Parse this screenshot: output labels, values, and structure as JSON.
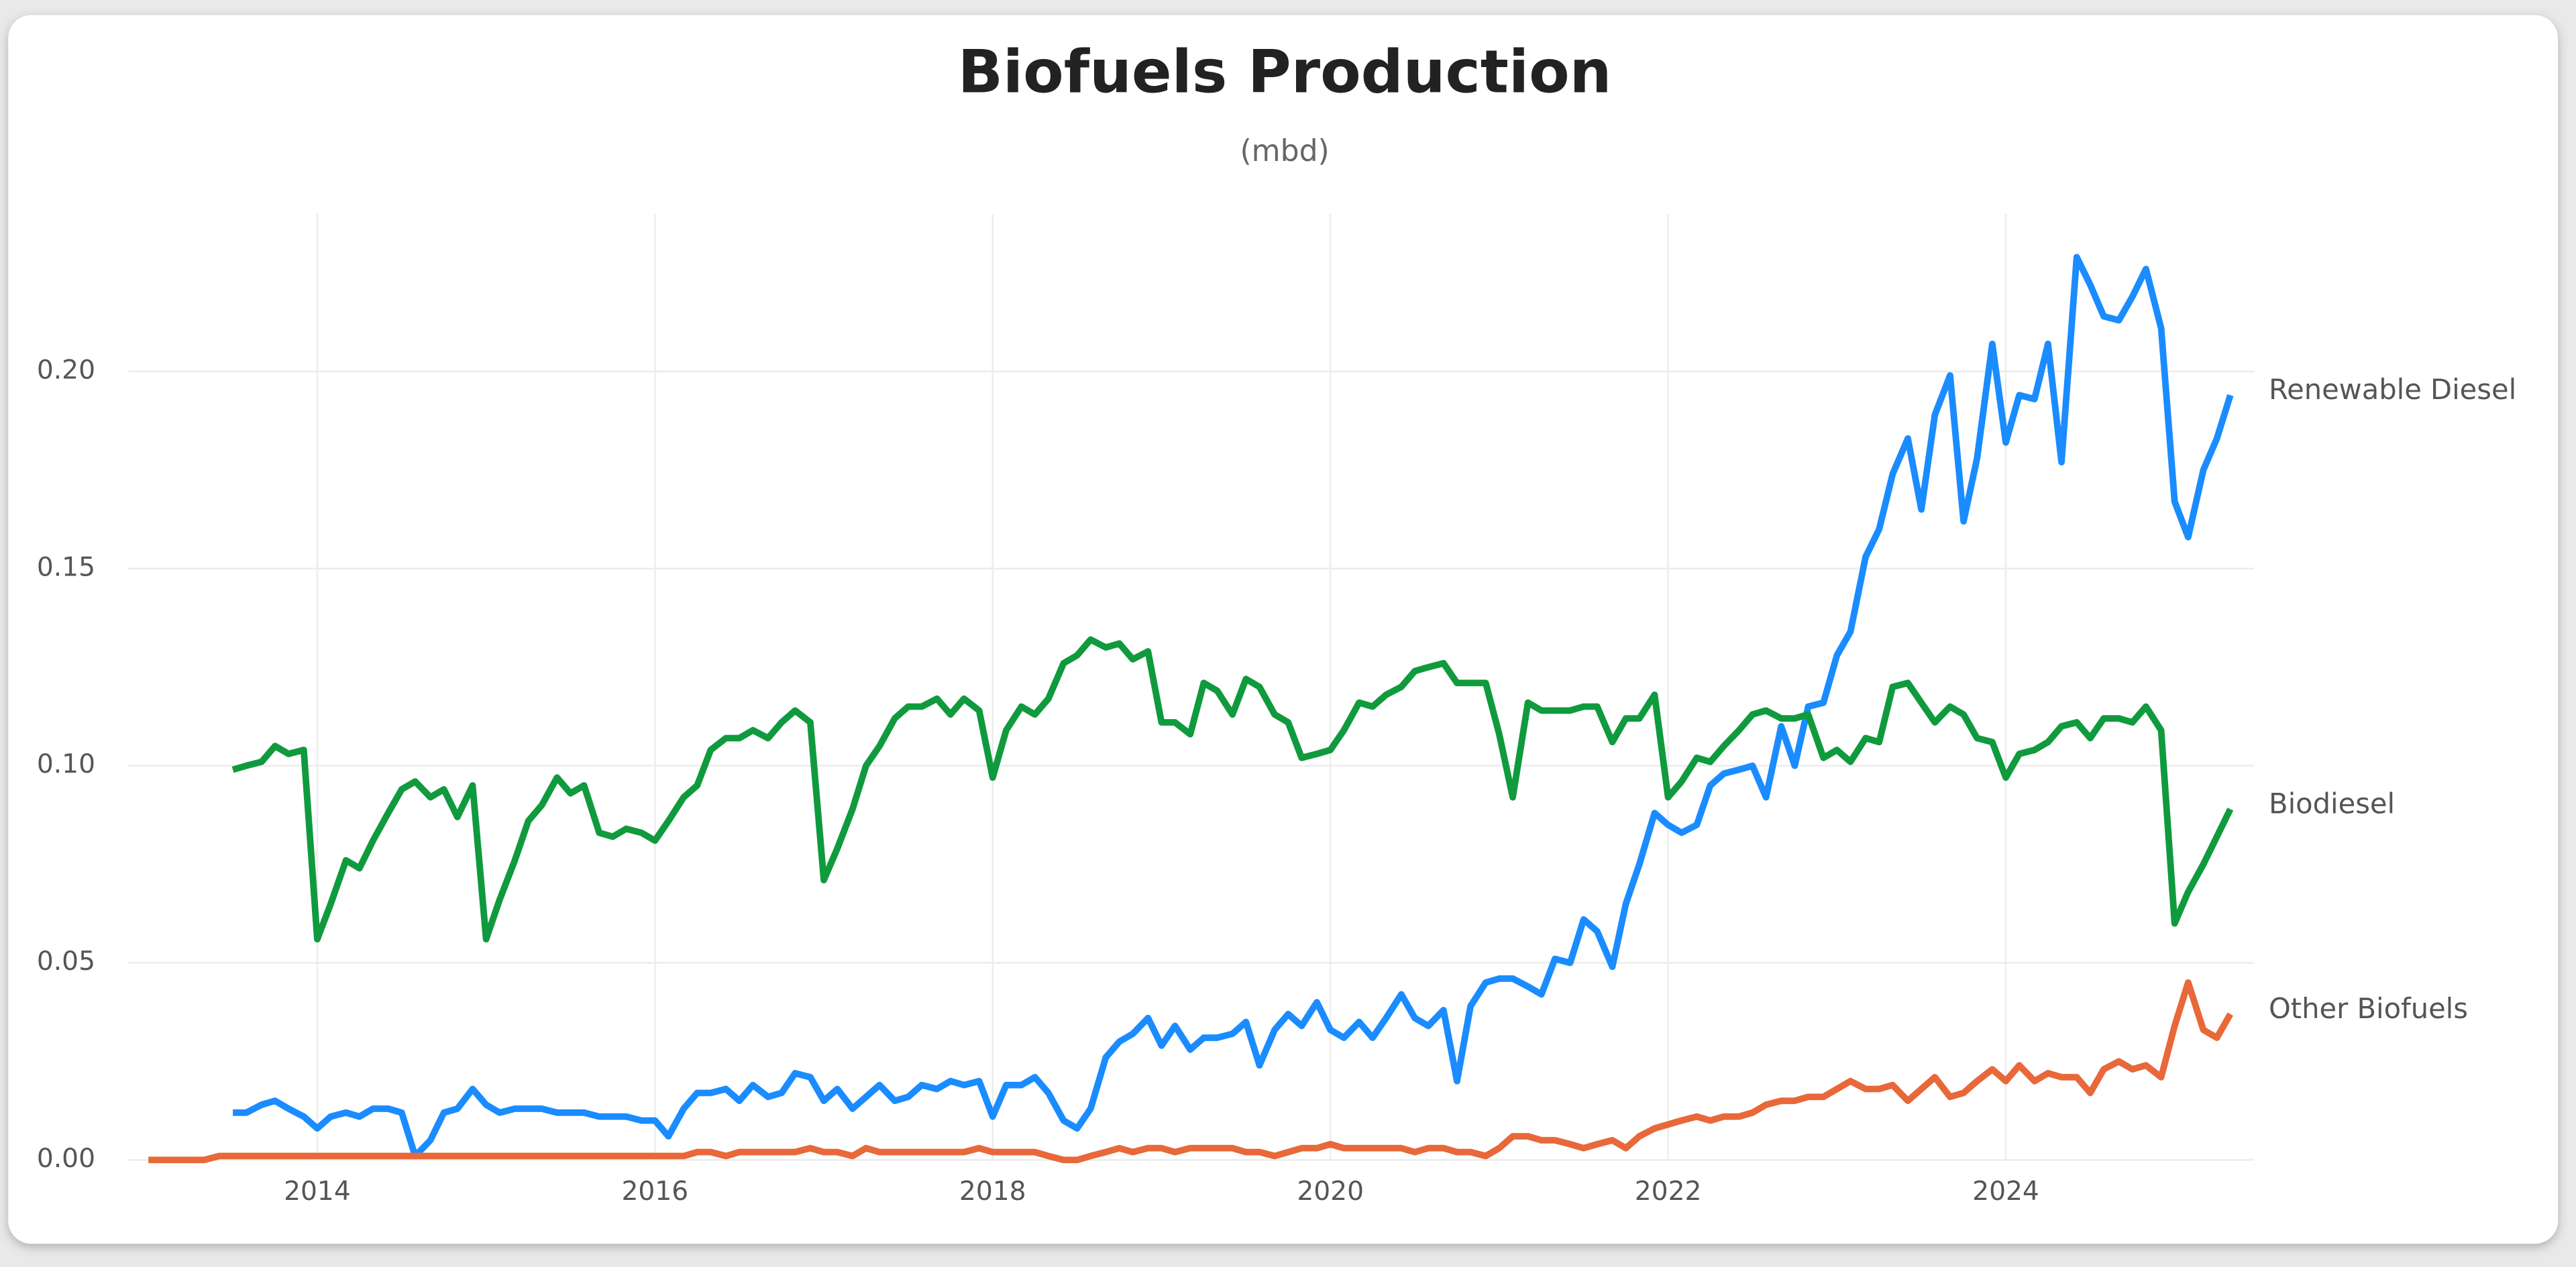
{
  "chart_data": {
    "type": "line",
    "title": "Biofuels Production",
    "subtitle": "(mbd)",
    "x": [
      2013.0,
      2013.08,
      2013.17,
      2013.25,
      2013.33,
      2013.42,
      2013.5,
      2013.58,
      2013.67,
      2013.75,
      2013.83,
      2013.92,
      2014.0,
      2014.08,
      2014.17,
      2014.25,
      2014.33,
      2014.42,
      2014.5,
      2014.58,
      2014.67,
      2014.75,
      2014.83,
      2014.92,
      2015.0,
      2015.08,
      2015.17,
      2015.25,
      2015.33,
      2015.42,
      2015.5,
      2015.58,
      2015.67,
      2015.75,
      2015.83,
      2015.92,
      2016.0,
      2016.08,
      2016.17,
      2016.25,
      2016.33,
      2016.42,
      2016.5,
      2016.58,
      2016.67,
      2016.75,
      2016.83,
      2016.92,
      2017.0,
      2017.08,
      2017.17,
      2017.25,
      2017.33,
      2017.42,
      2017.5,
      2017.58,
      2017.67,
      2017.75,
      2017.83,
      2017.92,
      2018.0,
      2018.08,
      2018.17,
      2018.25,
      2018.33,
      2018.42,
      2018.5,
      2018.58,
      2018.67,
      2018.75,
      2018.83,
      2018.92,
      2019.0,
      2019.08,
      2019.17,
      2019.25,
      2019.33,
      2019.42,
      2019.5,
      2019.58,
      2019.67,
      2019.75,
      2019.83,
      2019.92,
      2020.0,
      2020.08,
      2020.17,
      2020.25,
      2020.33,
      2020.42,
      2020.5,
      2020.58,
      2020.67,
      2020.75,
      2020.83,
      2020.92,
      2021.0,
      2021.08,
      2021.17,
      2021.25,
      2021.33,
      2021.42,
      2021.5,
      2021.58,
      2021.67,
      2021.75,
      2021.83,
      2021.92,
      2022.0,
      2022.08,
      2022.17,
      2022.25,
      2022.33,
      2022.42,
      2022.5,
      2022.58,
      2022.67,
      2022.75,
      2022.83,
      2022.92,
      2023.0,
      2023.08,
      2023.17,
      2023.25,
      2023.33,
      2023.42,
      2023.5,
      2023.58,
      2023.67,
      2023.75,
      2023.83,
      2023.92,
      2024.0,
      2024.08,
      2024.17,
      2024.25,
      2024.33,
      2024.42,
      2024.5,
      2024.58,
      2024.67,
      2024.75,
      2024.83,
      2024.92,
      2025.0,
      2025.08,
      2025.17,
      2025.25,
      2025.33
    ],
    "series": [
      {
        "name": "Renewable Diesel",
        "color": "#1a8cff",
        "values": [
          null,
          null,
          null,
          null,
          null,
          null,
          0.012,
          0.012,
          0.014,
          0.015,
          0.013,
          0.011,
          0.008,
          0.011,
          0.012,
          0.011,
          0.013,
          0.013,
          0.012,
          0.001,
          0.005,
          0.012,
          0.013,
          0.018,
          0.014,
          0.012,
          0.013,
          0.013,
          0.013,
          0.012,
          0.012,
          0.012,
          0.011,
          0.011,
          0.011,
          0.01,
          0.01,
          0.006,
          0.013,
          0.017,
          0.017,
          0.018,
          0.015,
          0.019,
          0.016,
          0.017,
          0.022,
          0.021,
          0.015,
          0.018,
          0.013,
          0.016,
          0.019,
          0.015,
          0.016,
          0.019,
          0.018,
          0.02,
          0.019,
          0.02,
          0.011,
          0.019,
          0.019,
          0.021,
          0.017,
          0.01,
          0.008,
          0.013,
          0.026,
          0.03,
          0.032,
          0.036,
          0.029,
          0.034,
          0.028,
          0.031,
          0.031,
          0.032,
          0.035,
          0.024,
          0.033,
          0.037,
          0.034,
          0.04,
          0.033,
          0.031,
          0.035,
          0.031,
          0.036,
          0.042,
          0.036,
          0.034,
          0.038,
          0.02,
          0.039,
          0.045,
          0.046,
          0.046,
          0.044,
          0.042,
          0.051,
          0.05,
          0.061,
          0.058,
          0.049,
          0.065,
          0.075,
          0.088,
          0.085,
          0.083,
          0.085,
          0.095,
          0.098,
          0.099,
          0.1,
          0.092,
          0.11,
          0.1,
          0.115,
          0.116,
          0.128,
          0.134,
          0.153,
          0.16,
          0.174,
          0.183,
          0.165,
          0.189,
          0.199,
          0.162,
          0.178,
          0.207,
          0.182,
          0.194,
          0.193,
          0.207,
          0.177,
          0.229,
          0.222,
          0.214,
          0.213,
          0.219,
          0.226,
          0.211,
          0.167,
          0.158,
          0.175,
          0.183,
          0.194
        ]
      },
      {
        "name": "Biodiesel",
        "color": "#109a3e",
        "values": [
          null,
          null,
          null,
          null,
          null,
          null,
          0.099,
          0.1,
          0.101,
          0.105,
          0.103,
          0.104,
          0.056,
          0.065,
          0.076,
          0.074,
          0.081,
          0.088,
          0.094,
          0.096,
          0.092,
          0.094,
          0.087,
          0.095,
          0.056,
          0.066,
          0.076,
          0.086,
          0.09,
          0.097,
          0.093,
          0.095,
          0.083,
          0.082,
          0.084,
          0.083,
          0.081,
          0.086,
          0.092,
          0.095,
          0.104,
          0.107,
          0.107,
          0.109,
          0.107,
          0.111,
          0.114,
          0.111,
          0.071,
          0.079,
          0.089,
          0.1,
          0.105,
          0.112,
          0.115,
          0.115,
          0.117,
          0.113,
          0.117,
          0.114,
          0.097,
          0.109,
          0.115,
          0.113,
          0.117,
          0.126,
          0.128,
          0.132,
          0.13,
          0.131,
          0.127,
          0.129,
          0.111,
          0.111,
          0.108,
          0.121,
          0.119,
          0.113,
          0.122,
          0.12,
          0.113,
          0.111,
          0.102,
          0.103,
          0.104,
          0.109,
          0.116,
          0.115,
          0.118,
          0.12,
          0.124,
          0.125,
          0.126,
          0.121,
          0.121,
          0.121,
          0.108,
          0.092,
          0.116,
          0.114,
          0.114,
          0.114,
          0.115,
          0.115,
          0.106,
          0.112,
          0.112,
          0.118,
          0.092,
          0.096,
          0.102,
          0.101,
          0.105,
          0.109,
          0.113,
          0.114,
          0.112,
          0.112,
          0.113,
          0.102,
          0.104,
          0.101,
          0.107,
          0.106,
          0.12,
          0.121,
          0.116,
          0.111,
          0.115,
          0.113,
          0.107,
          0.106,
          0.097,
          0.103,
          0.104,
          0.106,
          0.11,
          0.111,
          0.107,
          0.112,
          0.112,
          0.111,
          0.115,
          0.109,
          0.06,
          0.068,
          0.075,
          0.082,
          0.089
        ]
      },
      {
        "name": "Other Biofuels",
        "color": "#e8683a",
        "values": [
          0.0,
          0.0,
          0.0,
          0.0,
          0.0,
          0.001,
          0.001,
          0.001,
          0.001,
          0.001,
          0.001,
          0.001,
          0.001,
          0.001,
          0.001,
          0.001,
          0.001,
          0.001,
          0.001,
          0.001,
          0.001,
          0.001,
          0.001,
          0.001,
          0.001,
          0.001,
          0.001,
          0.001,
          0.001,
          0.001,
          0.001,
          0.001,
          0.001,
          0.001,
          0.001,
          0.001,
          0.001,
          0.001,
          0.001,
          0.002,
          0.002,
          0.001,
          0.002,
          0.002,
          0.002,
          0.002,
          0.002,
          0.003,
          0.002,
          0.002,
          0.001,
          0.003,
          0.002,
          0.002,
          0.002,
          0.002,
          0.002,
          0.002,
          0.002,
          0.003,
          0.002,
          0.002,
          0.002,
          0.002,
          0.001,
          0.0,
          0.0,
          0.001,
          0.002,
          0.003,
          0.002,
          0.003,
          0.003,
          0.002,
          0.003,
          0.003,
          0.003,
          0.003,
          0.002,
          0.002,
          0.001,
          0.002,
          0.003,
          0.003,
          0.004,
          0.003,
          0.003,
          0.003,
          0.003,
          0.003,
          0.002,
          0.003,
          0.003,
          0.002,
          0.002,
          0.001,
          0.003,
          0.006,
          0.006,
          0.005,
          0.005,
          0.004,
          0.003,
          0.004,
          0.005,
          0.003,
          0.006,
          0.008,
          0.009,
          0.01,
          0.011,
          0.01,
          0.011,
          0.011,
          0.012,
          0.014,
          0.015,
          0.015,
          0.016,
          0.016,
          0.018,
          0.02,
          0.018,
          0.018,
          0.019,
          0.015,
          0.018,
          0.021,
          0.016,
          0.017,
          0.02,
          0.023,
          0.02,
          0.024,
          0.02,
          0.022,
          0.021,
          0.021,
          0.017,
          0.023,
          0.025,
          0.023,
          0.024,
          0.021,
          0.034,
          0.045,
          0.033,
          0.031,
          0.037
        ]
      }
    ],
    "xlim": [
      2012.88,
      2025.47
    ],
    "xticks": [
      2014,
      2016,
      2018,
      2020,
      2022,
      2024
    ],
    "ylim": [
      0,
      0.24
    ],
    "yticks": [
      {
        "value": 0,
        "label": "0.00"
      },
      0.05,
      {
        "value": 0.1,
        "label": "0.10"
      },
      0.15,
      {
        "value": 0.2,
        "label": "0.20"
      }
    ],
    "grid": true
  }
}
